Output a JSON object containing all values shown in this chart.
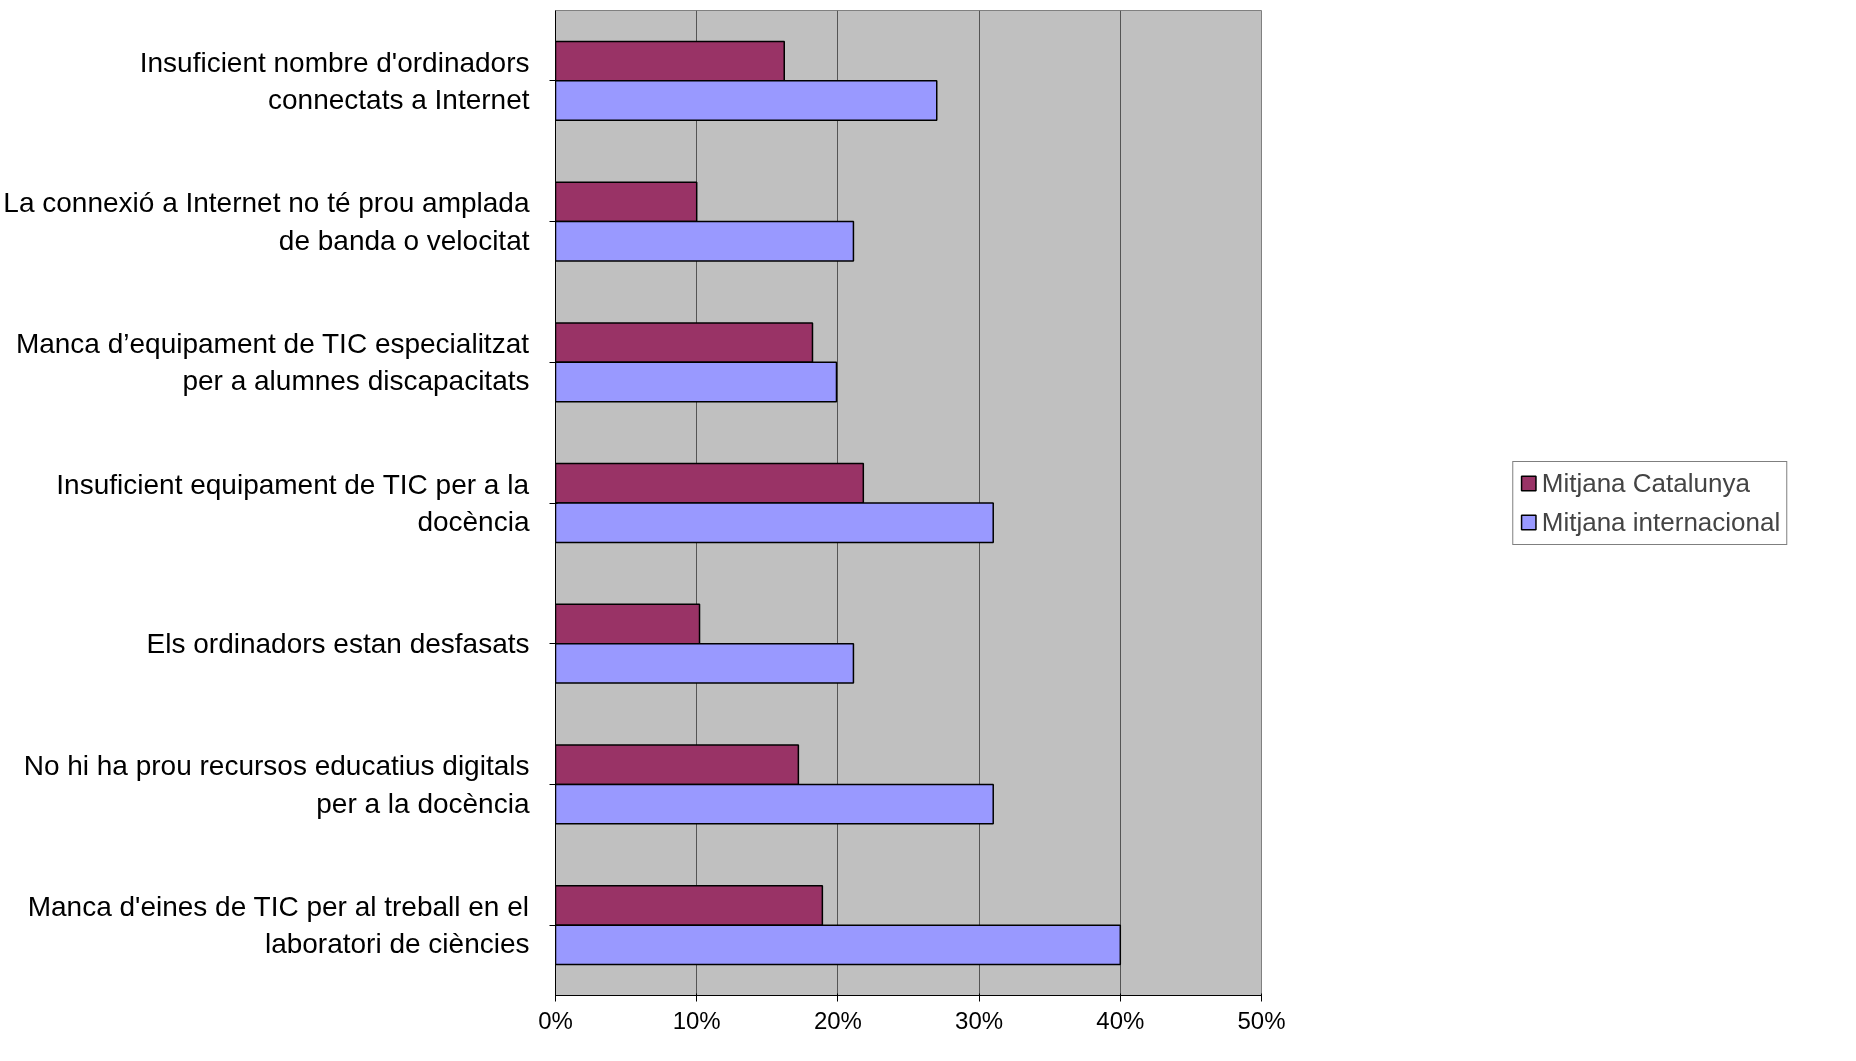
{
  "chart_data": {
    "type": "bar",
    "orientation": "horizontal",
    "categories": [
      "Insuficient nombre d'ordinadors connectats a Internet",
      "La connexió a Internet no té prou amplada de banda o velocitat",
      "Manca d’equipament de TIC especialitzat per a alumnes discapacitats",
      "Insuficient equipament de TIC per a la docència",
      "Els ordinadors estan desfasats",
      "No hi ha prou recursos educatius digitals per a la docència",
      "Manca d'eines de TIC per al treball en el laboratori de ciències"
    ],
    "series": [
      {
        "name": "Mitjana Catalunya",
        "color": "#993366",
        "values": [
          16.2,
          10.0,
          18.2,
          21.8,
          10.2,
          17.2,
          18.9
        ]
      },
      {
        "name": "Mitjana internacional",
        "color": "#9999ff",
        "values": [
          27.0,
          21.1,
          19.9,
          31.0,
          21.1,
          31.0,
          40.0
        ]
      }
    ],
    "xlim": [
      0,
      50
    ],
    "xticks": [
      {
        "value": 0,
        "label": "0%"
      },
      {
        "value": 10,
        "label": "10%"
      },
      {
        "value": 20,
        "label": "20%"
      },
      {
        "value": 30,
        "label": "30%"
      },
      {
        "value": 40,
        "label": "40%"
      },
      {
        "value": 50,
        "label": "50%"
      }
    ],
    "grid": "x",
    "legend": "right"
  }
}
